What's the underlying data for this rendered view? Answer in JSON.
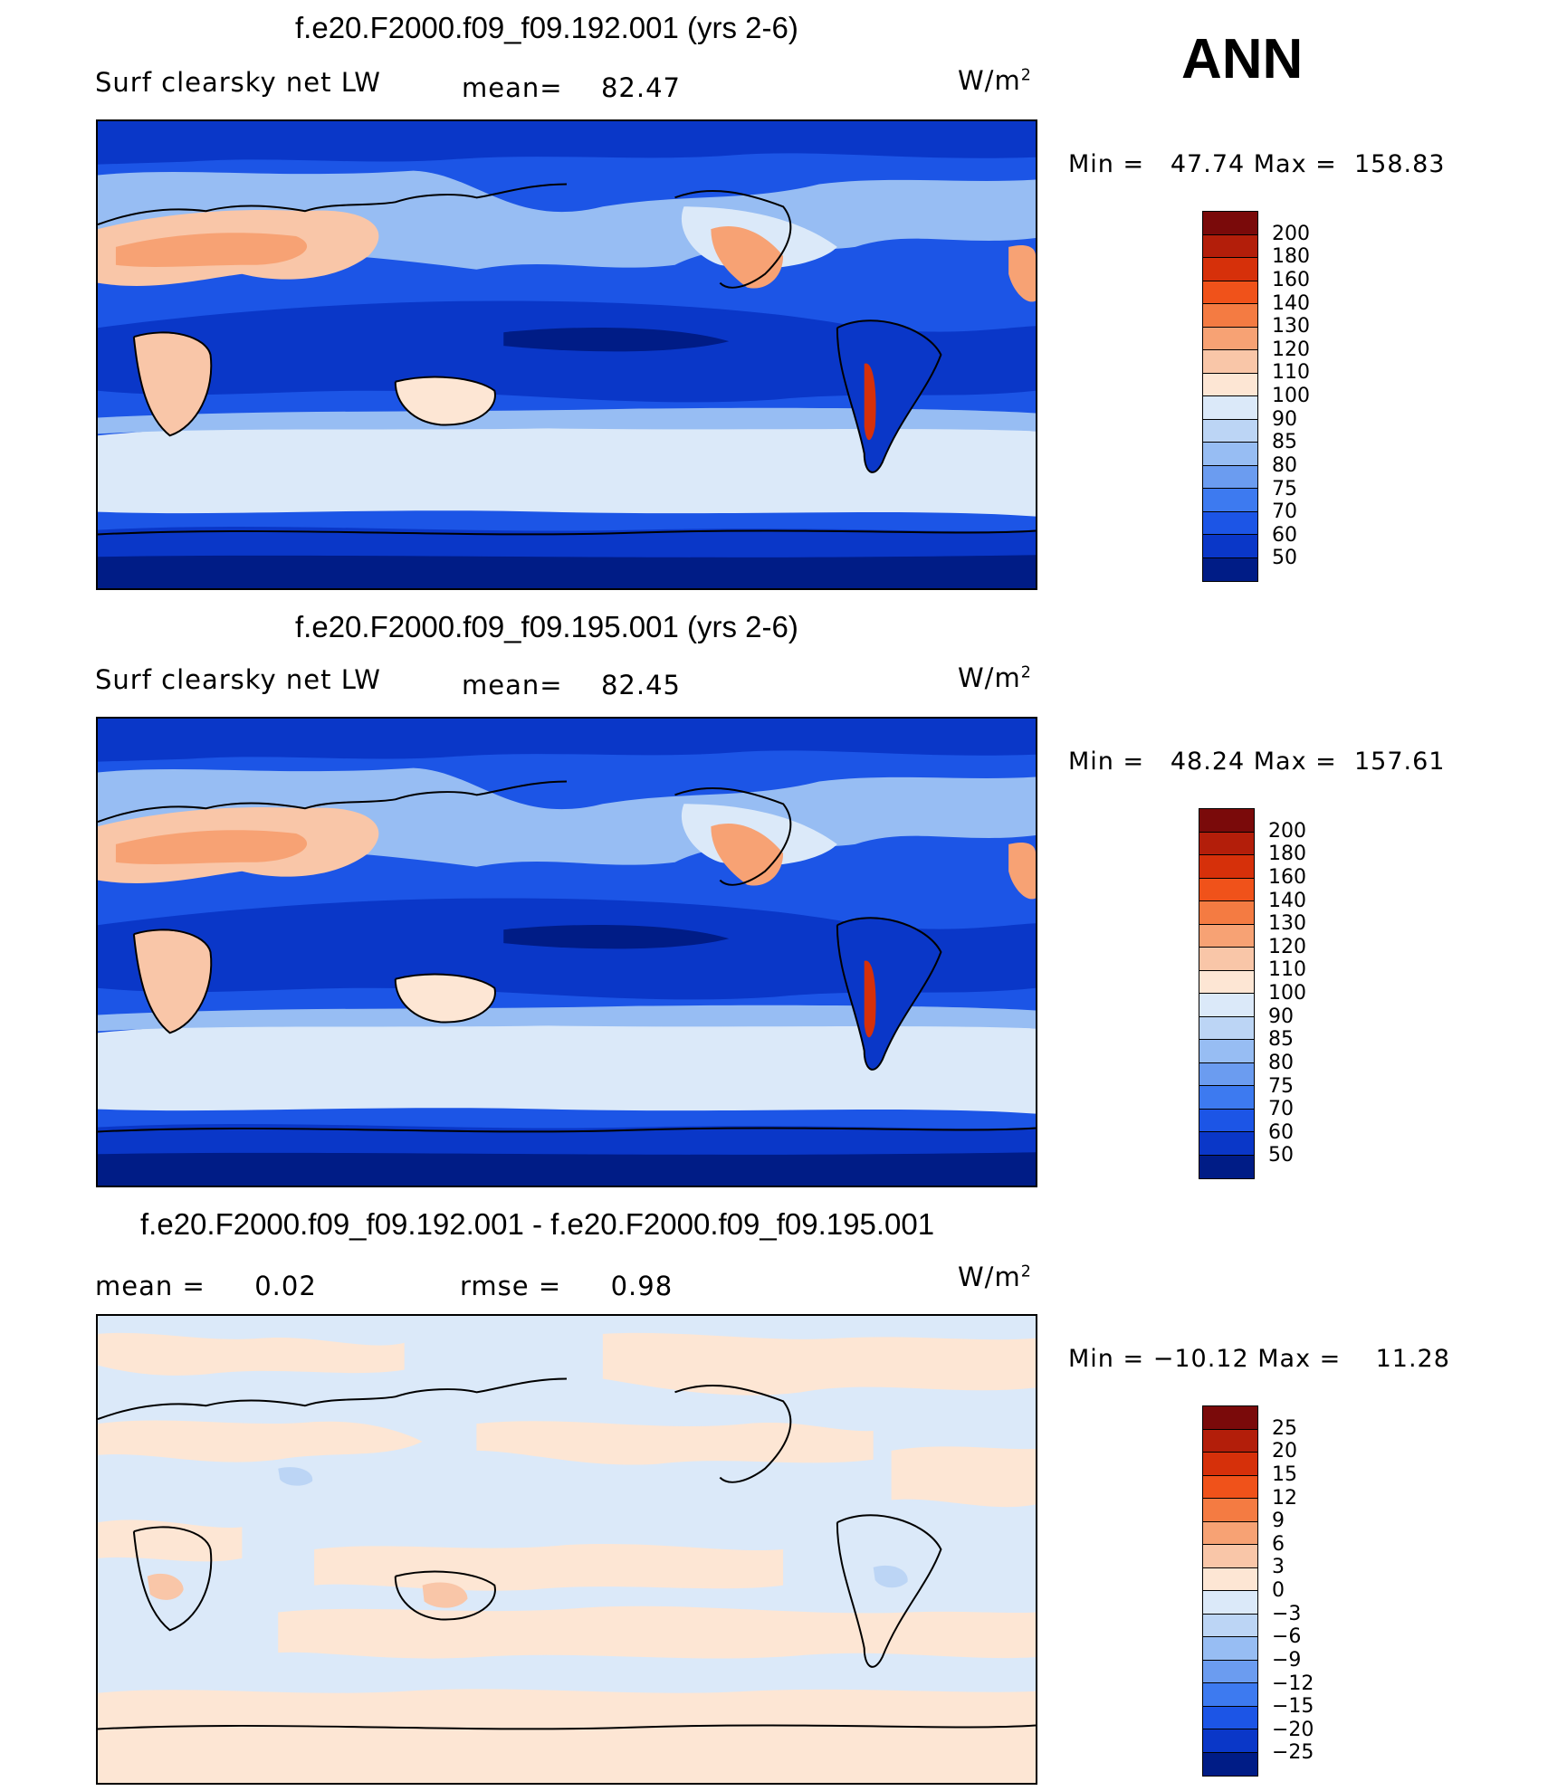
{
  "season": "ANN",
  "panels": [
    {
      "title": "f.e20.F2000.f09_f09.192.001 (yrs 2-6)",
      "left_label": "Surf clearsky net LW",
      "stat_label": "mean=",
      "stat_value": "82.47",
      "units_base": "W/m",
      "units_exp": "2",
      "min_label": "Min",
      "min_value": "47.74",
      "max_label": "Max",
      "max_value": "158.83",
      "colorbar": {
        "ticks": [
          "200",
          "180",
          "160",
          "140",
          "130",
          "120",
          "110",
          "100",
          "90",
          "85",
          "80",
          "75",
          "70",
          "60",
          "50"
        ],
        "colors": [
          "#7a0a0a",
          "#b31e0a",
          "#d6300a",
          "#f0521a",
          "#f47b42",
          "#f7a274",
          "#f9c6a8",
          "#fde6d4",
          "#dbe9f9",
          "#bcd5f5",
          "#97bdf3",
          "#6b9cf0",
          "#3d7af0",
          "#1c55e6",
          "#0a37c8",
          "#001c86"
        ]
      }
    },
    {
      "title": "f.e20.F2000.f09_f09.195.001 (yrs 2-6)",
      "left_label": "Surf clearsky net LW",
      "stat_label": "mean=",
      "stat_value": "82.45",
      "units_base": "W/m",
      "units_exp": "2",
      "min_label": "Min",
      "min_value": "48.24",
      "max_label": "Max",
      "max_value": "157.61",
      "colorbar": {
        "ticks": [
          "200",
          "180",
          "160",
          "140",
          "130",
          "120",
          "110",
          "100",
          "90",
          "85",
          "80",
          "75",
          "70",
          "60",
          "50"
        ],
        "colors": [
          "#7a0a0a",
          "#b31e0a",
          "#d6300a",
          "#f0521a",
          "#f47b42",
          "#f7a274",
          "#f9c6a8",
          "#fde6d4",
          "#dbe9f9",
          "#bcd5f5",
          "#97bdf3",
          "#6b9cf0",
          "#3d7af0",
          "#1c55e6",
          "#0a37c8",
          "#001c86"
        ]
      }
    },
    {
      "title": "f.e20.F2000.f09_f09.192.001 - f.e20.F2000.f09_f09.195.001",
      "left_label": "mean =",
      "left_value": "0.02",
      "stat_label": "rmse =",
      "stat_value": "0.98",
      "units_base": "W/m",
      "units_exp": "2",
      "min_label": "Min",
      "min_value": "−10.12",
      "max_label": "Max",
      "max_value": "11.28",
      "colorbar": {
        "ticks": [
          "25",
          "20",
          "15",
          "12",
          "9",
          "6",
          "3",
          "0",
          "−3",
          "−6",
          "−9",
          "−12",
          "−15",
          "−20",
          "−25"
        ],
        "colors": [
          "#7a0a0a",
          "#b31e0a",
          "#d6300a",
          "#f0521a",
          "#f47b42",
          "#f7a274",
          "#f9c6a8",
          "#fde6d4",
          "#dbe9f9",
          "#bcd5f5",
          "#97bdf3",
          "#6b9cf0",
          "#3d7af0",
          "#1c55e6",
          "#0a37c8",
          "#001c86"
        ]
      }
    }
  ]
}
